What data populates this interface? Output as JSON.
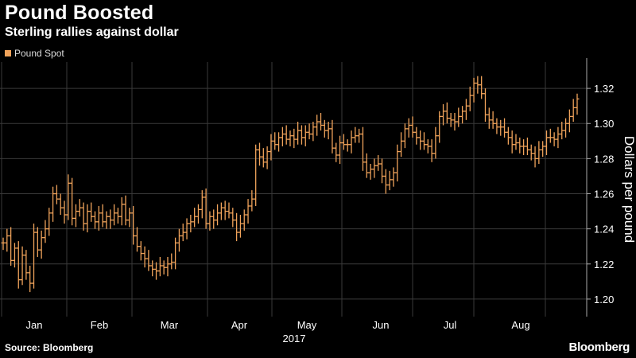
{
  "header": {
    "title": "Pound Boosted",
    "subtitle": "Sterling rallies against dollar"
  },
  "footer": {
    "source": "Source: Bloomberg",
    "brand": "Bloomberg"
  },
  "colors": {
    "background": "#000000",
    "series": "#f0a35b",
    "grid": "#3a3a3a",
    "text": "#ffffff"
  },
  "chart_data": {
    "type": "ohlc",
    "title": "Pound Boosted",
    "subtitle": "Sterling rallies against dollar",
    "ylabel": "Dollars per pound",
    "ylim": [
      1.19,
      1.335
    ],
    "yticks": [
      1.2,
      1.22,
      1.24,
      1.26,
      1.28,
      1.3,
      1.32
    ],
    "ytick_labels": [
      "1.20",
      "1.22",
      "1.24",
      "1.26",
      "1.28",
      "1.30",
      "1.32"
    ],
    "xticks": [
      "Jan",
      "Feb",
      "Mar",
      "Apr",
      "May",
      "Jun",
      "Jul",
      "Aug"
    ],
    "xlabel_year": "2017",
    "grid": true,
    "legend_position": "top-left",
    "series": [
      {
        "name": "Pound Spot",
        "closes": [
          1.232,
          1.236,
          1.222,
          1.229,
          1.211,
          1.225,
          1.215,
          1.209,
          1.238,
          1.228,
          1.235,
          1.24,
          1.249,
          1.26,
          1.257,
          1.252,
          1.248,
          1.266,
          1.246,
          1.25,
          1.252,
          1.243,
          1.25,
          1.247,
          1.244,
          1.249,
          1.244,
          1.247,
          1.245,
          1.249,
          1.247,
          1.254,
          1.245,
          1.249,
          1.236,
          1.23,
          1.226,
          1.223,
          1.219,
          1.217,
          1.216,
          1.219,
          1.218,
          1.22,
          1.221,
          1.232,
          1.236,
          1.238,
          1.243,
          1.244,
          1.247,
          1.251,
          1.258,
          1.243,
          1.247,
          1.245,
          1.249,
          1.252,
          1.25,
          1.249,
          1.245,
          1.238,
          1.243,
          1.248,
          1.253,
          1.257,
          1.285,
          1.281,
          1.278,
          1.284,
          1.29,
          1.288,
          1.292,
          1.294,
          1.291,
          1.293,
          1.291,
          1.296,
          1.292,
          1.295,
          1.294,
          1.298,
          1.301,
          1.299,
          1.296,
          1.297,
          1.286,
          1.282,
          1.289,
          1.288,
          1.288,
          1.292,
          1.293,
          1.294,
          1.278,
          1.272,
          1.274,
          1.276,
          1.277,
          1.27,
          1.265,
          1.268,
          1.272,
          1.284,
          1.29,
          1.297,
          1.299,
          1.295,
          1.292,
          1.29,
          1.288,
          1.287,
          1.283,
          1.293,
          1.304,
          1.307,
          1.303,
          1.302,
          1.301,
          1.304,
          1.307,
          1.31,
          1.316,
          1.323,
          1.322,
          1.317,
          1.305,
          1.302,
          1.3,
          1.298,
          1.298,
          1.295,
          1.292,
          1.288,
          1.289,
          1.287,
          1.287,
          1.285,
          1.283,
          1.28,
          1.285,
          1.287,
          1.292,
          1.292,
          1.291,
          1.294,
          1.296,
          1.3,
          1.304,
          1.309,
          1.314
        ]
      }
    ]
  }
}
